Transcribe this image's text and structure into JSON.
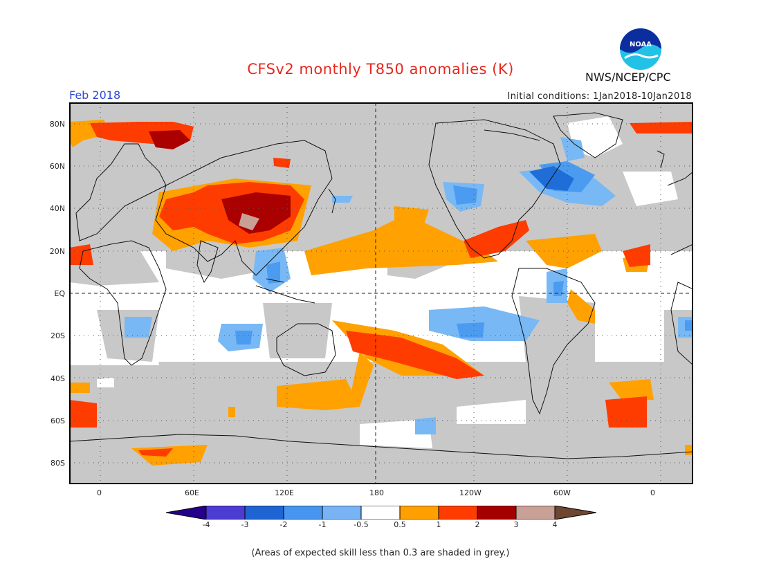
{
  "title": "CFSv2 monthly T850 anomalies (K)",
  "valid_month": "Feb 2018",
  "initial_conditions": "Initial conditions: 1Jan2018-10Jan2018",
  "agency": "NWS/NCEP/CPC",
  "logo_text": "NOAA",
  "footnote": "(Areas of expected skill less than 0.3 are shaded in grey.)",
  "map": {
    "projection": "equirectangular",
    "lon_range": [
      -20,
      380
    ],
    "lat_range": [
      -90,
      90
    ],
    "x_ticks": [
      "0",
      "60E",
      "120E",
      "180",
      "120W",
      "60W",
      "0"
    ],
    "y_ticks": [
      "80N",
      "60N",
      "40N",
      "20N",
      "EQ",
      "20S",
      "40S",
      "60S",
      "80S"
    ],
    "colors": {
      "grey_low_skill": "#c8c8c8",
      "neutral": "#ffffff",
      "pos_0_5_to_1": "#ffa100",
      "pos_1_to_2": "#ff3c00",
      "pos_2_to_3": "#aa0000",
      "neg_0_5_to_1": "#78b8f5",
      "neg_1_to_2": "#4b9cf0",
      "neg_2_to_3": "#1f6ed8"
    }
  },
  "colorbar": {
    "labels": [
      "-4",
      "-3",
      "-2",
      "-1",
      "-0.5",
      "0.5",
      "1",
      "2",
      "3",
      "4"
    ],
    "colors": [
      "#24008c",
      "#4b3cd2",
      "#1e64d2",
      "#4696f0",
      "#78b4f5",
      "#ffffff",
      "#ffa000",
      "#ff3c00",
      "#a50000",
      "#c8a096",
      "#6e4632"
    ]
  }
}
